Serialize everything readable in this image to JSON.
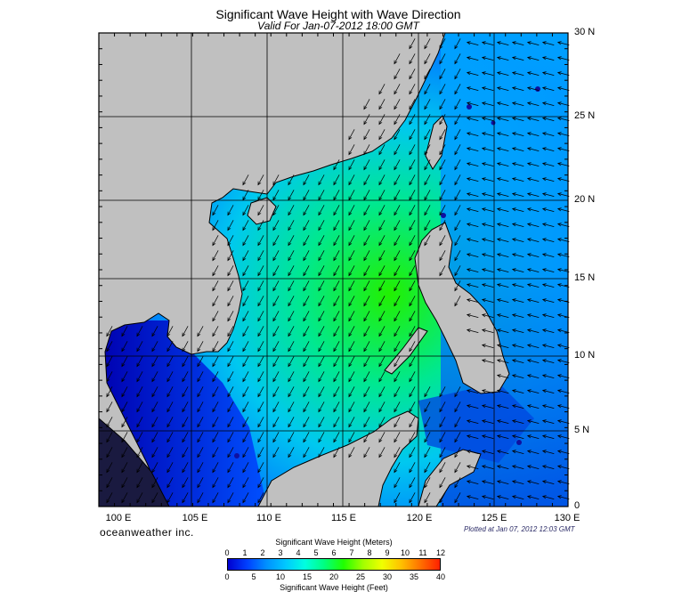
{
  "title": "Significant Wave Height with Wave Direction",
  "subtitle": "Valid For Jan-07-2012 18:00 GMT",
  "lon_labels": [
    "100 E",
    "105 E",
    "110 E",
    "115 E",
    "120 E",
    "125 E",
    "130 E"
  ],
  "lat_labels": [
    "0",
    "5 N",
    "10 N",
    "15 N",
    "20 N",
    "25 N",
    "30 N"
  ],
  "brand": "oceanweather inc.",
  "plotted": "Plotted at Jan 07, 2012 12:03 GMT",
  "colorbar": {
    "title_meters": "Significant Wave Height (Meters)",
    "title_feet": "Significant Wave Height (Feet)",
    "meter_ticks": [
      "0",
      "1",
      "2",
      "3",
      "4",
      "5",
      "6",
      "7",
      "8",
      "9",
      "10",
      "11",
      "12"
    ],
    "feet_ticks": [
      "0",
      "5",
      "10",
      "15",
      "20",
      "25",
      "30",
      "35",
      "40"
    ],
    "colors": [
      "#0000d0",
      "#0040ff",
      "#0090ff",
      "#00c8ff",
      "#00ffe0",
      "#00ff80",
      "#20ff00",
      "#a0ff00",
      "#f0ff00",
      "#ffc000",
      "#ff7000",
      "#ff2000"
    ]
  },
  "colors": {
    "land": "#c0c0c0",
    "coast": "#000000",
    "grid": "#000000"
  }
}
